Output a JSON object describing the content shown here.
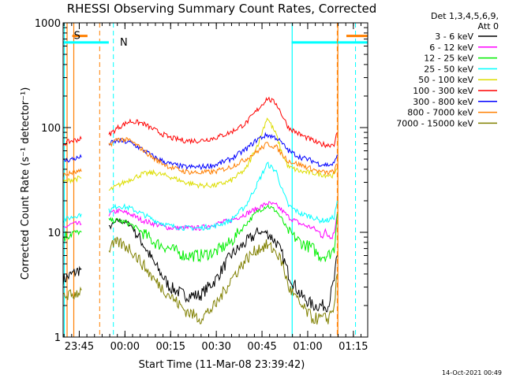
{
  "chart_data": {
    "type": "line",
    "title": "RHESSI Observing Summary Count Rates, Corrected",
    "xlabel": "Start Time (11-Mar-08 23:39:42)",
    "ylabel": "Corrected Count Rate (s⁻¹ detector⁻¹)",
    "ylog": true,
    "ylim": [
      1,
      1000
    ],
    "xlim_min_after_start": [
      0,
      100
    ],
    "x_tick_labels": [
      "23:45",
      "00:00",
      "00:15",
      "00:30",
      "00:45",
      "01:00",
      "01:15"
    ],
    "x_tick_minutes": [
      5.3,
      20.3,
      35.3,
      50.3,
      65.3,
      80.3,
      95.3
    ],
    "y_tick_labels": [
      "1",
      "10",
      "100",
      "1000"
    ],
    "y_tick_values": [
      1,
      10,
      100,
      1000
    ],
    "legend_header": [
      "Det 1,3,4,5,6,9,",
      "Att 0"
    ],
    "legend_position": "right",
    "x_minutes": [
      0,
      3,
      6,
      8,
      15,
      18,
      22,
      26,
      30,
      35,
      40,
      45,
      50,
      55,
      60,
      64,
      67,
      70,
      72,
      74,
      78,
      82,
      84,
      87,
      89,
      90
    ],
    "series": [
      {
        "name": "3 - 6 keV",
        "color": "#000000",
        "values": [
          3.5,
          4,
          4.5,
          null,
          11,
          13,
          12,
          8,
          5,
          3,
          2.5,
          2.5,
          3.5,
          6,
          8,
          10,
          10,
          8,
          6,
          4,
          2.5,
          2,
          2,
          2,
          3.5,
          6
        ]
      },
      {
        "name": "6 - 12 keV",
        "color": "#ff00ff",
        "values": [
          11,
          12,
          12,
          null,
          15,
          16,
          15,
          13,
          12,
          11,
          11,
          11,
          12,
          13,
          15,
          17,
          19,
          18,
          16,
          14,
          12,
          11,
          10,
          9.5,
          10,
          15
        ]
      },
      {
        "name": "12 - 25 keV",
        "color": "#00ee00",
        "values": [
          9,
          10,
          10,
          null,
          13,
          13,
          12,
          10,
          8,
          7,
          6,
          6,
          6.5,
          8,
          12,
          16,
          18,
          16,
          13,
          10,
          8,
          7,
          6,
          6,
          7,
          15
        ]
      },
      {
        "name": "25 - 50 keV",
        "color": "#00ffff",
        "values": [
          13,
          14,
          15,
          null,
          16,
          18,
          17,
          15,
          13,
          11.5,
          11,
          11,
          11.5,
          13,
          18,
          30,
          45,
          38,
          25,
          18,
          15,
          14,
          13,
          13,
          14,
          20
        ]
      },
      {
        "name": "50 - 100 keV",
        "color": "#dddd00",
        "values": [
          30,
          32,
          33,
          null,
          25,
          28,
          32,
          36,
          37,
          34,
          30,
          28,
          28,
          31,
          40,
          70,
          125,
          85,
          55,
          42,
          38,
          37,
          36,
          35,
          35,
          40
        ]
      },
      {
        "name": "100 - 300 keV",
        "color": "#ff0000",
        "values": [
          70,
          75,
          78,
          null,
          85,
          100,
          115,
          110,
          95,
          80,
          75,
          75,
          80,
          90,
          110,
          150,
          190,
          170,
          130,
          100,
          85,
          75,
          70,
          68,
          70,
          90
        ]
      },
      {
        "name": "300 - 800 keV",
        "color": "#0000ff",
        "values": [
          48,
          50,
          52,
          null,
          70,
          75,
          72,
          62,
          52,
          45,
          42,
          42,
          44,
          50,
          62,
          78,
          85,
          80,
          70,
          60,
          52,
          48,
          45,
          44,
          45,
          55
        ]
      },
      {
        "name": "800 - 7000 keV",
        "color": "#ff7f00",
        "values": [
          35,
          37,
          38,
          null,
          68,
          78,
          75,
          62,
          50,
          42,
          38,
          37,
          38,
          42,
          50,
          60,
          70,
          65,
          55,
          48,
          44,
          40,
          38,
          37,
          38,
          45
        ]
      },
      {
        "name": "7000 - 15000 keV",
        "color": "#808000",
        "values": [
          2.5,
          2.5,
          2.8,
          null,
          7,
          8,
          7,
          5,
          3.5,
          2.5,
          1.8,
          1.5,
          2,
          3.5,
          5.5,
          7,
          7.5,
          6.5,
          5,
          3,
          2,
          1.5,
          1.5,
          1.5,
          2,
          4
        ]
      }
    ],
    "markers": [
      {
        "label": "S",
        "color": "#ff7f00",
        "level": 750,
        "x_solid": [
          3,
          8
        ],
        "x_dashed_line": 12
      },
      {
        "label": "N",
        "color": "#00ffff",
        "level": 650,
        "x_solid": [
          0,
          15
        ],
        "x_dashed_line": 16.5
      }
    ],
    "right_markers": [
      {
        "color": "#00ffff",
        "level": 650,
        "x_solid": [
          75,
          100
        ],
        "x_dashed_line": 96
      },
      {
        "color": "#ff7f00",
        "level": 750,
        "x_solid": [
          93,
          100
        ],
        "x_dashed_line": 90
      }
    ],
    "vertical_lines": [
      {
        "color": "#ff7f00",
        "minute": 1.3,
        "style": "solid"
      },
      {
        "color": "#ff7f00",
        "minute": 3.5,
        "style": "solid"
      },
      {
        "color": "#00ffff",
        "minute": 0.4,
        "style": "solid"
      },
      {
        "color": "#00ffff",
        "minute": 75.2,
        "style": "solid"
      },
      {
        "color": "#ff7f00",
        "minute": 90.2,
        "style": "solid"
      }
    ]
  },
  "footer_timestamp": "14-Oct-2021 00:49"
}
